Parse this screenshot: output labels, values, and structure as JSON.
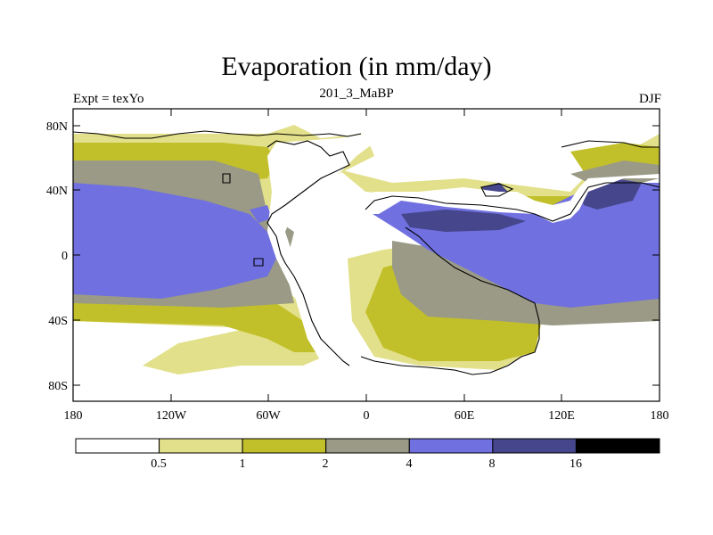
{
  "title": "Evaporation (in mm/day)",
  "left_label": "Expt = texYo",
  "center_label": "201_3_MaBP",
  "right_label": "DJF",
  "lat_ticks": [
    "80N",
    "40N",
    "0",
    "40S",
    "80S"
  ],
  "lon_ticks": [
    "180",
    "120W",
    "60W",
    "0",
    "60E",
    "120E",
    "180"
  ],
  "colorbar": {
    "levels": [
      "0.5",
      "1",
      "2",
      "4",
      "8",
      "16"
    ],
    "colors": [
      "#ffffff",
      "#e2e08a",
      "#c2c02a",
      "#9a9a86",
      "#7070e0",
      "#46468c",
      "#000000"
    ]
  },
  "colors": {
    "ocean_high": "#7070e0",
    "ocean_very_high": "#46468c",
    "ocean_mid": "#9a9a86",
    "ocean_low": "#c2c02a",
    "ocean_very_low": "#e2e08a",
    "land": "#ffffff",
    "coast": "#000000"
  }
}
